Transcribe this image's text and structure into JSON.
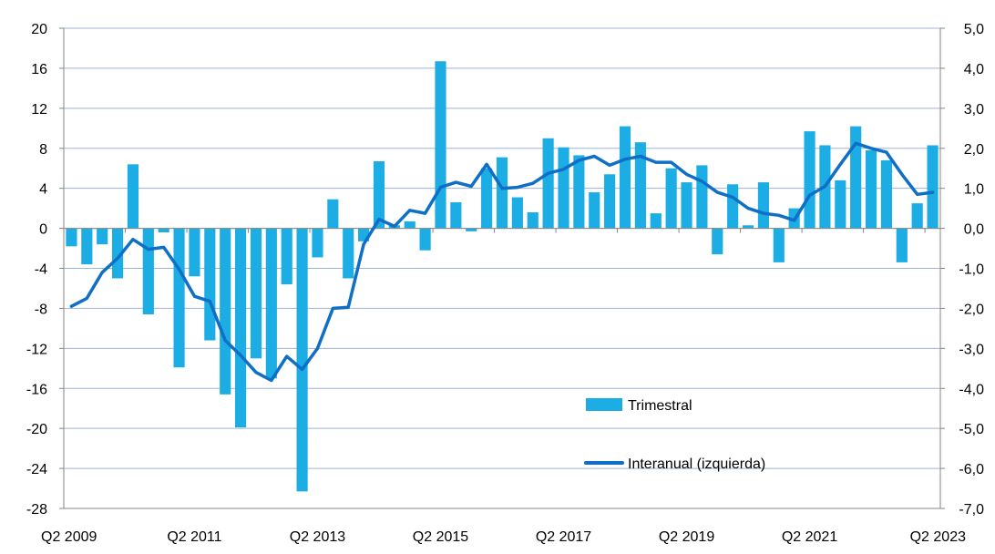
{
  "chart_data": {
    "type": "bar",
    "title": "",
    "x_tick_labels": [
      "Q2 2009",
      "Q2 2011",
      "Q2 2013",
      "Q2 2015",
      "Q2 2017",
      "Q2 2019",
      "Q2 2021",
      "Q2 2023"
    ],
    "left_axis": {
      "ylim": [
        -28,
        20
      ],
      "ticks": [
        20,
        16,
        12,
        8,
        4,
        0,
        -4,
        -8,
        -12,
        -16,
        -20,
        -24,
        -28
      ],
      "tick_labels": [
        "20",
        "16",
        "12",
        "8",
        "4",
        "0",
        "-4",
        "-8",
        "-12",
        "-16",
        "-20",
        "-24",
        "-28"
      ]
    },
    "right_axis": {
      "ylim": [
        -7.0,
        5.0
      ],
      "ticks": [
        5.0,
        4.0,
        3.0,
        2.0,
        1.0,
        0.0,
        -1.0,
        -2.0,
        -3.0,
        -4.0,
        -5.0,
        -6.0,
        -7.0
      ],
      "tick_labels": [
        "5,0",
        "4,0",
        "3,0",
        "2,0",
        "1,0",
        "0,0",
        "-1,0",
        "-2,0",
        "-3,0",
        "-4,0",
        "-5,0",
        "-6,0",
        "-7,0"
      ]
    },
    "grid": true,
    "legend_position": "bottom-right, inside plot",
    "series": [
      {
        "name": "Trimestral",
        "type": "bar",
        "axis": "left",
        "color": "#1CADE4",
        "values": [
          -1.8,
          -3.6,
          -1.6,
          -5.0,
          6.4,
          -8.6,
          -0.4,
          -13.9,
          -4.8,
          -11.2,
          -16.6,
          -19.9,
          -13.0,
          -15.0,
          -5.6,
          -26.3,
          -2.9,
          2.9,
          -5.0,
          -1.3,
          6.7,
          0.3,
          0.7,
          -2.2,
          16.7,
          2.6,
          -0.3,
          6.0,
          7.1,
          3.1,
          1.6,
          9.0,
          8.1,
          7.3,
          3.6,
          5.4,
          10.2,
          8.6,
          1.5,
          6.0,
          4.6,
          6.3,
          -2.6,
          4.4,
          0.3,
          4.6,
          -3.4,
          2.0,
          9.7,
          8.3,
          4.8,
          10.2,
          7.8,
          6.8,
          -3.4,
          2.5,
          8.3
        ]
      },
      {
        "name": "Interanual (izquierda)",
        "type": "line",
        "axis": "left",
        "color": "#0F6FC6",
        "values": [
          -7.8,
          -7.0,
          -4.4,
          -3.0,
          -1.1,
          -2.1,
          -1.9,
          -4.1,
          -6.8,
          -7.3,
          -11.2,
          -12.7,
          -14.4,
          -15.2,
          -12.8,
          -14.1,
          -12.0,
          -8.0,
          -7.9,
          -1.6,
          0.9,
          0.2,
          1.8,
          1.5,
          4.1,
          4.6,
          4.2,
          6.4,
          4.0,
          4.1,
          4.5,
          5.5,
          5.9,
          6.8,
          7.2,
          6.3,
          6.9,
          7.2,
          6.6,
          6.6,
          5.4,
          4.7,
          3.6,
          3.1,
          2.0,
          1.5,
          1.3,
          0.8,
          3.3,
          4.2,
          6.4,
          8.5,
          8.0,
          7.6,
          5.4,
          3.4,
          3.6
        ]
      }
    ]
  }
}
